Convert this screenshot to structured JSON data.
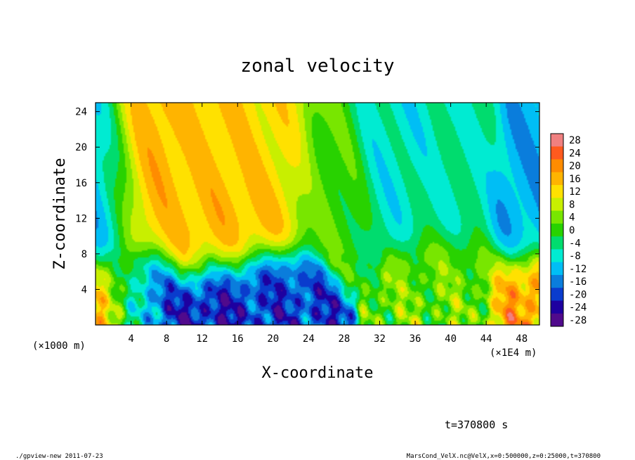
{
  "chart_data": {
    "type": "heatmap",
    "title": "zonal velocity",
    "xlabel": "X-coordinate",
    "ylabel": "Z-coordinate",
    "x_unit_label": "(×1E4 m)",
    "y_unit_label": "(×1000 m)",
    "xlim": [
      0,
      50
    ],
    "ylim": [
      0,
      25
    ],
    "x_ticks": [
      4,
      8,
      12,
      16,
      20,
      24,
      28,
      32,
      36,
      40,
      44,
      48
    ],
    "y_ticks": [
      4,
      8,
      12,
      16,
      20,
      24
    ],
    "colorbar": {
      "levels": [
        28,
        24,
        20,
        16,
        12,
        8,
        4,
        0,
        -4,
        -8,
        -12,
        -16,
        -20,
        -24,
        -28
      ],
      "colors": [
        "#f08080",
        "#ff5a1e",
        "#ff8c00",
        "#ffb400",
        "#ffe100",
        "#c8ef00",
        "#78e600",
        "#28d200",
        "#00dc6e",
        "#00ebd2",
        "#00bef5",
        "#0a7ddc",
        "#0a3ccd",
        "#1e00a0",
        "#500a8c"
      ]
    },
    "fields": [
      {
        "x": 1.0,
        "z": 14,
        "v": -13
      },
      {
        "x": 5.5,
        "z": 15,
        "v": 17
      },
      {
        "x": 10.0,
        "z": 13,
        "v": 14
      },
      {
        "x": 15.0,
        "z": 20,
        "v": 14
      },
      {
        "x": 13.5,
        "z": 12,
        "v": 16
      },
      {
        "x": 18.0,
        "z": 14,
        "v": 15
      },
      {
        "x": 20.5,
        "z": 20,
        "v": 12
      },
      {
        "x": 26.0,
        "z": 18,
        "v": 1
      },
      {
        "x": 34.0,
        "z": 20,
        "v": -8
      },
      {
        "x": 40.0,
        "z": 16,
        "v": -6
      },
      {
        "x": 49.5,
        "z": 14,
        "v": -13
      },
      {
        "x": 5.5,
        "z": 1.5,
        "v": -22
      },
      {
        "x": 13.5,
        "z": 1.2,
        "v": -23
      },
      {
        "x": 19.0,
        "z": 1.5,
        "v": -20
      },
      {
        "x": 2.5,
        "z": 1.0,
        "v": 16
      },
      {
        "x": 49.8,
        "z": 1.0,
        "v": 18
      },
      {
        "x": 40.0,
        "z": 3.0,
        "v": 3
      }
    ]
  },
  "annotations": {
    "time": "t=370800 s",
    "footer_left": "./gpview-new  2011-07-23",
    "footer_right": "MarsCond_VelX.nc@VelX,x=0:500000,z=0:25000,t=370800"
  }
}
